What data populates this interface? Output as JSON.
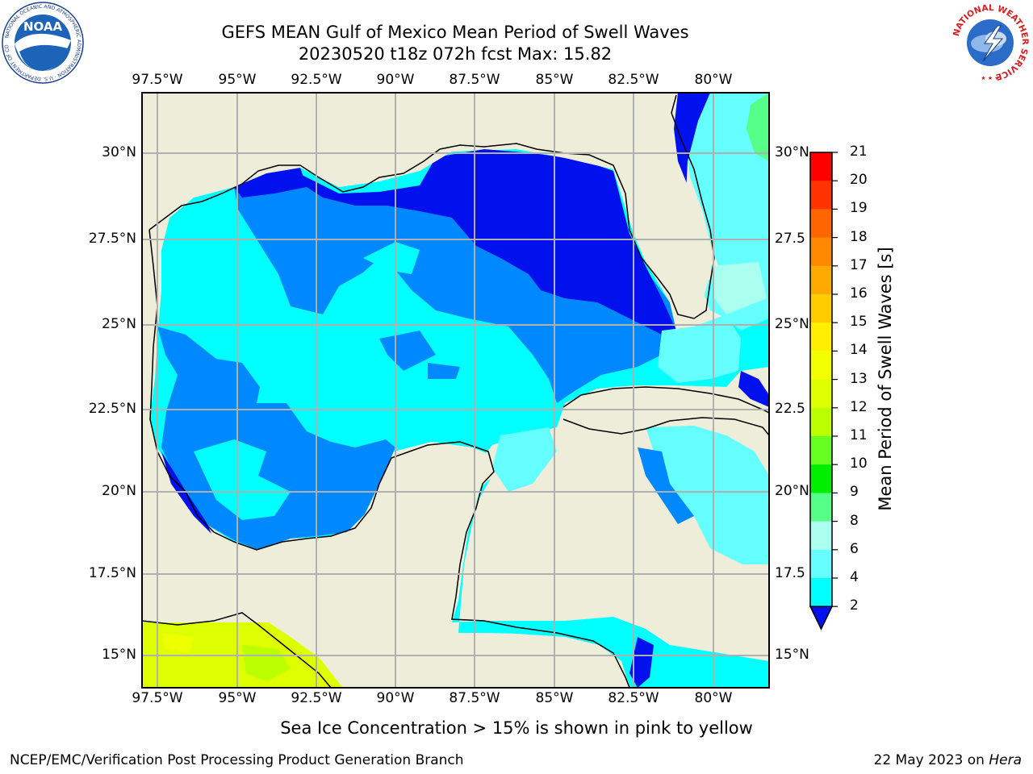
{
  "title": {
    "line1": "GEFS MEAN Gulf of Mexico Mean Period of Swell Waves",
    "line2": "20230520 t18z 072h fcst   Max: 15.82"
  },
  "map": {
    "lon_labels": [
      "97.5°W",
      "95°W",
      "92.5°W",
      "90°W",
      "87.5°W",
      "85°W",
      "82.5°W",
      "80°W"
    ],
    "lat_labels_left": [
      "30°N",
      "27.5°N",
      "25°N",
      "22.5°N",
      "20°N",
      "17.5°N",
      "15°N"
    ],
    "lat_labels_right": [
      "30°N",
      "27.5",
      "25°N",
      "22.5",
      "20°N",
      "17.5",
      "15°N"
    ],
    "colors": {
      "land": "#eeedd9",
      "grid": "#b0b0b0"
    }
  },
  "colorbar": {
    "label": "Mean Period of Swell Waves [s]",
    "ticks": [
      "21",
      "20",
      "19",
      "18",
      "17",
      "16",
      "15",
      "14",
      "13",
      "12",
      "11",
      "10",
      "9",
      "8",
      "6",
      "4",
      "2"
    ],
    "colors": [
      "#ff0000",
      "#ff3300",
      "#ff6600",
      "#ff8800",
      "#ffaa00",
      "#ffcc00",
      "#ffee00",
      "#f2ff00",
      "#ddff00",
      "#bbff00",
      "#66ff22",
      "#00ee00",
      "#55ff88",
      "#aaffee",
      "#66ffff",
      "#00ffff",
      "#0088ff",
      "#0011ee"
    ]
  },
  "note": "Sea Ice Concentration > 15% is shown in pink to yellow",
  "footer": {
    "left": "NCEP/EMC/Verification Post Processing Product Generation Branch",
    "date": "22 May 2023 on ",
    "machine": "Hera"
  },
  "logos": {
    "left": {
      "text": "NOAA",
      "ring": "NATIONAL OCEANIC AND ATMOSPHERIC ADMINISTRATION · U.S. DEPARTMENT OF COMMERCE"
    },
    "right": {
      "ring": "NATIONAL WEATHER SERVICE"
    }
  }
}
